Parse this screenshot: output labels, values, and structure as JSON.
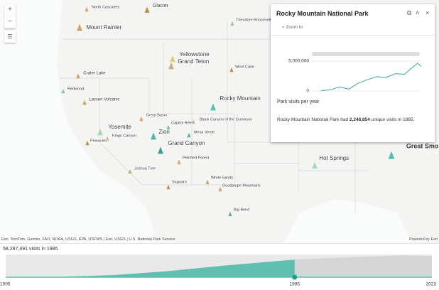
{
  "map": {
    "parks": [
      {
        "label": "North Cascades"
      },
      {
        "label": "Glacier"
      },
      {
        "label": "Theodore Roosevelt"
      },
      {
        "label": "Mount Rainier"
      },
      {
        "label": "Yellowstone"
      },
      {
        "label": "Grand Teton"
      },
      {
        "label": "Wind Cave"
      },
      {
        "label": "Crater Lake"
      },
      {
        "label": "Redwood"
      },
      {
        "label": "Lassen Volcanic"
      },
      {
        "label": "Rocky Mountain"
      },
      {
        "label": "Great Basin"
      },
      {
        "label": "Black Canyon of the Gunnison"
      },
      {
        "label": "Capitol Reef"
      },
      {
        "label": "Yosemite"
      },
      {
        "label": "Kings Canyon"
      },
      {
        "label": "Pinnacles"
      },
      {
        "label": "Zion"
      },
      {
        "label": "Mesa Verde"
      },
      {
        "label": "Grand Canyon"
      },
      {
        "label": "Petrified Forest"
      },
      {
        "label": "Joshua Tree"
      },
      {
        "label": "Saguaro"
      },
      {
        "label": "White Sands"
      },
      {
        "label": "Guadalupe Mountains"
      },
      {
        "label": "Big Bend"
      },
      {
        "label": "Hot Springs"
      },
      {
        "label": "Great Smoky Mountains"
      }
    ],
    "attribution": "Esri, TomTom, Garmin, FAO, NOAA, USGS, EPA, USFWS | Esri, USGS | U.S. National Park Service",
    "powered_by": "Powered by Esri"
  },
  "popup": {
    "title": "Rocky Mountain National Park",
    "zoom_to": "Zoom to",
    "chart_data": {
      "type": "line",
      "color": "#3aa99a",
      "x": [
        1915,
        1925,
        1935,
        1945,
        1955,
        1965,
        1975,
        1985,
        1995,
        2005,
        2015,
        2019,
        2023
      ],
      "values": [
        31000,
        230000,
        670000,
        300000,
        1300000,
        1900000,
        2400000,
        2248854,
        2900000,
        2800000,
        4150000,
        4670000,
        4100000
      ],
      "xlim": [
        1905,
        2023
      ],
      "ylim": [
        0,
        5000000
      ],
      "yticks": [
        {
          "value": 0,
          "label": "0"
        },
        {
          "value": 5000000,
          "label": "5,000,000"
        }
      ],
      "caption": "Park visits per year"
    },
    "description": {
      "before": "Rocky Mountain National Park had",
      "visits": "2,248,854",
      "after": "unique visits in 1985."
    }
  },
  "timeline": {
    "status": "58,287,491 visits in 1985",
    "current": 1985,
    "x": [
      1905,
      1920,
      1935,
      1950,
      1965,
      1985,
      2000,
      2015,
      2023
    ],
    "values": [
      100000,
      1200000,
      7000000,
      20000000,
      38000000,
      58287491,
      66000000,
      72000000,
      70000000
    ],
    "xlim": [
      1905,
      2023
    ],
    "ylim": [
      0,
      80000000
    ],
    "xticks": [
      1905,
      1985,
      2023
    ]
  }
}
